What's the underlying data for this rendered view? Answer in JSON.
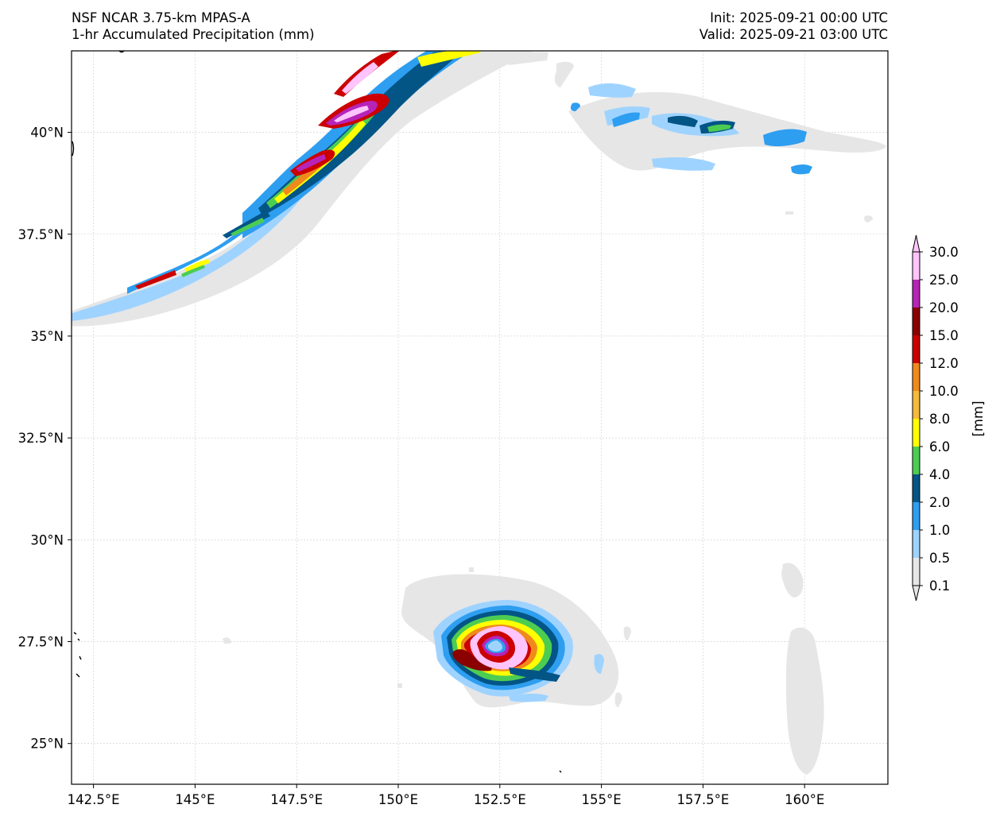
{
  "header": {
    "model": "NSF NCAR 3.75-km MPAS-A",
    "field": "1-hr Accumulated Precipitation (mm)",
    "init": "Init: 2025-09-21 00:00 UTC",
    "valid": "Valid: 2025-09-21 03:00 UTC"
  },
  "map": {
    "lon_range": [
      141.96,
      162.05
    ],
    "lat_range": [
      24.0,
      42.0
    ],
    "lon_ticks": [
      142.5,
      145,
      147.5,
      150,
      152.5,
      155,
      157.5,
      160
    ],
    "lon_tick_labels": [
      "142.5°E",
      "145°E",
      "147.5°E",
      "150°E",
      "152.5°E",
      "155°E",
      "157.5°E",
      "160°E"
    ],
    "lat_ticks": [
      25,
      27.5,
      30,
      32.5,
      35,
      37.5,
      40
    ],
    "lat_tick_labels": [
      "25°N",
      "27.5°N",
      "30°N",
      "32.5°N",
      "35°N",
      "37.5°N",
      "40°N"
    ],
    "gridlines": true
  },
  "colorbar": {
    "unit_label": "[mm]",
    "levels": [
      "0.1",
      "0.5",
      "1.0",
      "2.0",
      "4.0",
      "6.0",
      "8.0",
      "10.0",
      "12.0",
      "15.0",
      "20.0",
      "25.0",
      "30.0"
    ],
    "colors": [
      "#e6e6e6",
      "#9fd3ff",
      "#2e9ef0",
      "#035586",
      "#4ccd52",
      "#ffff00",
      "#f6b93c",
      "#f08a1c",
      "#cc0000",
      "#8b0000",
      "#b624b8",
      "#ffc4fb"
    ],
    "extend": "both"
  }
}
